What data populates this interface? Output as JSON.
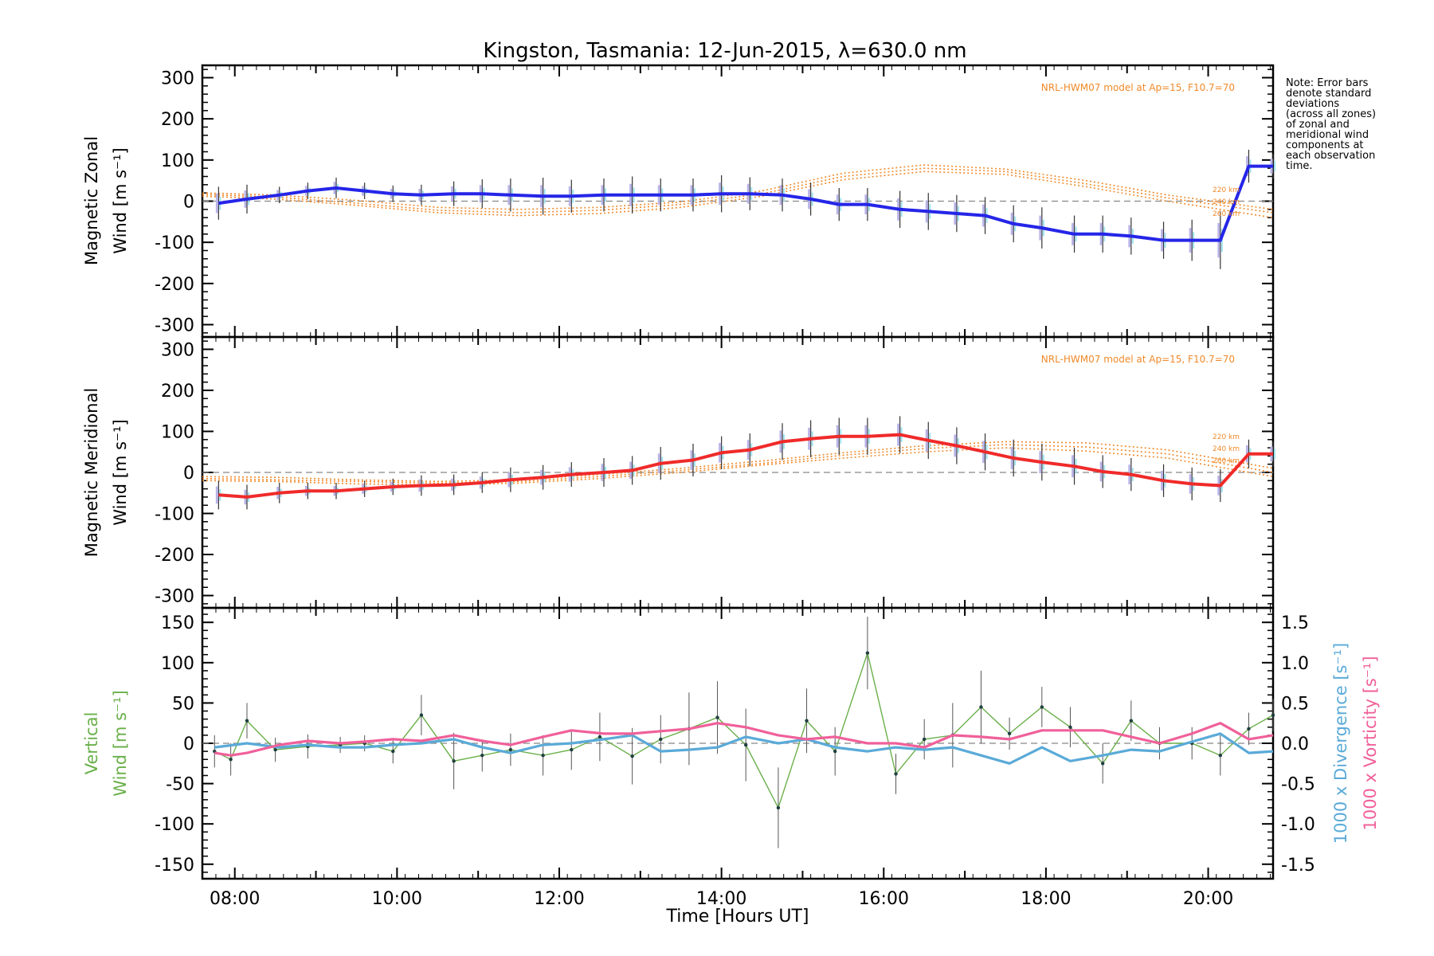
{
  "chart_data": [
    {
      "panel": "zonal",
      "type": "line",
      "title": "Kingston, Tasmania: 12-Jun-2015, λ=630.0 nm",
      "ylabel_lines": [
        "Magnetic Zonal",
        "Wind [m s⁻¹]"
      ],
      "ylim": [
        -330,
        330
      ],
      "yticks": [
        300,
        200,
        100,
        0,
        -100,
        -200,
        -300
      ],
      "xlim": [
        7.6,
        20.8
      ],
      "model_label": "NRL-HWM07 model at Ap=15, F10.7=70",
      "model_altitude_labels": [
        "220 km",
        "240 km",
        "260 km"
      ],
      "note_lines": [
        "Note: Error bars",
        "denote standard",
        "deviations",
        "(across all zones)",
        "of zonal and",
        "meridional wind",
        "components at",
        "each observation",
        "time."
      ],
      "color": "#2525e8",
      "series": [
        {
          "x": [
            7.8,
            8.15,
            8.55,
            8.9,
            9.25,
            9.6,
            9.95,
            10.3,
            10.7,
            11.05,
            11.4,
            11.8,
            12.15,
            12.55,
            12.9,
            13.25,
            13.65,
            14.0,
            14.35,
            14.75,
            15.1,
            15.45,
            15.8,
            16.2,
            16.55,
            16.9,
            17.25,
            17.6,
            17.95,
            18.35,
            18.7,
            19.05,
            19.45,
            19.8,
            20.15,
            20.5,
            20.8
          ],
          "y": [
            -5,
            5,
            15,
            25,
            32,
            25,
            18,
            15,
            18,
            18,
            15,
            12,
            12,
            15,
            15,
            15,
            15,
            18,
            18,
            15,
            5,
            -8,
            -8,
            -20,
            -25,
            -30,
            -35,
            -55,
            -65,
            -80,
            -80,
            -85,
            -95,
            -95,
            -95,
            85,
            85
          ]
        }
      ],
      "models": [
        {
          "name": "220 km",
          "x": [
            7.6,
            8.5,
            9.5,
            10.5,
            11.5,
            12.5,
            13.5,
            14.5,
            15.5,
            16.5,
            17.5,
            18.5,
            19.5,
            20.8
          ],
          "y": [
            20,
            15,
            2,
            -15,
            -20,
            -15,
            -2,
            25,
            68,
            88,
            78,
            50,
            15,
            -20
          ]
        },
        {
          "name": "240 km",
          "x": [
            7.6,
            8.5,
            9.5,
            10.5,
            11.5,
            12.5,
            13.5,
            14.5,
            15.5,
            16.5,
            17.5,
            18.5,
            19.5,
            20.8
          ],
          "y": [
            16,
            10,
            -5,
            -22,
            -28,
            -22,
            -8,
            18,
            60,
            80,
            72,
            42,
            8,
            -28
          ]
        },
        {
          "name": "260 km",
          "x": [
            7.6,
            8.5,
            9.5,
            10.5,
            11.5,
            12.5,
            13.5,
            14.5,
            15.5,
            16.5,
            17.5,
            18.5,
            19.5,
            20.8
          ],
          "y": [
            12,
            5,
            -10,
            -28,
            -35,
            -30,
            -15,
            12,
            52,
            72,
            65,
            35,
            0,
            -40
          ]
        }
      ],
      "error": [
        40,
        35,
        20,
        20,
        25,
        20,
        20,
        25,
        30,
        35,
        40,
        45,
        40,
        40,
        45,
        40,
        40,
        45,
        40,
        40,
        40,
        40,
        40,
        45,
        45,
        45,
        45,
        45,
        50,
        45,
        45,
        45,
        45,
        50,
        70,
        40,
        30
      ]
    },
    {
      "panel": "meridional",
      "type": "line",
      "ylabel_lines": [
        "Magnetic Meridional",
        "Wind [m s⁻¹]"
      ],
      "ylim": [
        -330,
        330
      ],
      "yticks": [
        300,
        200,
        100,
        0,
        -100,
        -200,
        -300
      ],
      "xlim": [
        7.6,
        20.8
      ],
      "model_label": "NRL-HWM07 model at Ap=15, F10.7=70",
      "model_altitude_labels": [
        "220 km",
        "240 km",
        "260 km"
      ],
      "color": "#f02a2a",
      "series": [
        {
          "x": [
            7.8,
            8.15,
            8.55,
            8.9,
            9.25,
            9.6,
            9.95,
            10.3,
            10.7,
            11.05,
            11.4,
            11.8,
            12.15,
            12.55,
            12.9,
            13.25,
            13.65,
            14.0,
            14.35,
            14.75,
            15.1,
            15.45,
            15.8,
            16.2,
            16.55,
            16.9,
            17.25,
            17.6,
            17.95,
            18.35,
            18.7,
            19.05,
            19.45,
            19.8,
            20.15,
            20.5,
            20.8
          ],
          "y": [
            -55,
            -60,
            -50,
            -45,
            -45,
            -40,
            -35,
            -32,
            -30,
            -25,
            -18,
            -12,
            -5,
            0,
            5,
            22,
            30,
            48,
            55,
            75,
            82,
            88,
            88,
            92,
            78,
            65,
            50,
            35,
            25,
            15,
            2,
            -5,
            -20,
            -28,
            -32,
            45,
            45
          ]
        }
      ],
      "models": [
        {
          "name": "220 km",
          "x": [
            7.6,
            8.5,
            9.5,
            10.5,
            11.5,
            12.5,
            13.5,
            14.5,
            15.5,
            16.5,
            17.5,
            18.5,
            19.5,
            20.8
          ],
          "y": [
            -10,
            -12,
            -18,
            -22,
            -18,
            -5,
            10,
            28,
            48,
            65,
            75,
            72,
            55,
            10
          ]
        },
        {
          "name": "240 km",
          "x": [
            7.6,
            8.5,
            9.5,
            10.5,
            11.5,
            12.5,
            13.5,
            14.5,
            15.5,
            16.5,
            17.5,
            18.5,
            19.5,
            20.8
          ],
          "y": [
            -15,
            -18,
            -22,
            -26,
            -22,
            -10,
            5,
            22,
            42,
            58,
            68,
            62,
            45,
            0
          ]
        },
        {
          "name": "260 km",
          "x": [
            7.6,
            8.5,
            9.5,
            10.5,
            11.5,
            12.5,
            13.5,
            14.5,
            15.5,
            16.5,
            17.5,
            18.5,
            19.5,
            20.8
          ],
          "y": [
            -20,
            -22,
            -28,
            -30,
            -26,
            -15,
            0,
            18,
            35,
            50,
            60,
            52,
            35,
            -10
          ]
        }
      ],
      "error": [
        35,
        30,
        25,
        20,
        20,
        20,
        20,
        25,
        25,
        25,
        30,
        30,
        30,
        35,
        35,
        40,
        40,
        40,
        40,
        45,
        45,
        45,
        45,
        45,
        45,
        45,
        45,
        45,
        45,
        45,
        40,
        40,
        40,
        40,
        40,
        35,
        30
      ]
    },
    {
      "panel": "vertical",
      "type": "line",
      "ylabel_lines": [
        "Vertical",
        "Wind [m s⁻¹]"
      ],
      "ylim": [
        -168,
        168
      ],
      "yticks": [
        150,
        100,
        50,
        0,
        -50,
        -100,
        -150
      ],
      "y2lim": [
        -1.68,
        1.68
      ],
      "y2ticks": [
        1.5,
        1.0,
        0.5,
        0.0,
        -0.5,
        -1.0,
        -1.5
      ],
      "y2label_divergence": "1000 x Divergence [s⁻¹]",
      "y2label_vorticity": "1000 x Vorticity [s⁻¹]",
      "xlim": [
        7.6,
        20.8
      ],
      "xticks": [
        8,
        10,
        12,
        14,
        16,
        18,
        20
      ],
      "xticklabels": [
        "08:00",
        "10:00",
        "12:00",
        "14:00",
        "16:00",
        "18:00",
        "20:00"
      ],
      "xlabel": "Time [Hours UT]",
      "colors": {
        "vertical": "#6ab04a",
        "divergence": "#5aaad8",
        "vorticity": "#f0609a"
      },
      "series": [
        {
          "key": "vertical",
          "x": [
            7.75,
            7.95,
            8.15,
            8.5,
            8.9,
            9.3,
            9.6,
            9.95,
            10.3,
            10.7,
            11.05,
            11.4,
            11.8,
            12.15,
            12.5,
            12.9,
            13.25,
            13.6,
            13.95,
            14.3,
            14.7,
            15.05,
            15.4,
            15.8,
            16.15,
            16.5,
            16.85,
            17.2,
            17.55,
            17.95,
            18.3,
            18.7,
            19.05,
            19.4,
            19.8,
            20.15,
            20.5,
            20.8
          ],
          "y": [
            -10,
            -20,
            28,
            -8,
            -4,
            -2,
            0,
            -10,
            35,
            -22,
            -15,
            -8,
            -15,
            -8,
            8,
            -16,
            5,
            18,
            32,
            -2,
            -80,
            28,
            -10,
            112,
            -38,
            5,
            10,
            45,
            12,
            45,
            20,
            -25,
            28,
            0,
            0,
            -15,
            18,
            35
          ],
          "error": [
            20,
            20,
            22,
            15,
            15,
            10,
            10,
            15,
            25,
            35,
            20,
            20,
            25,
            25,
            30,
            35,
            30,
            45,
            45,
            45,
            50,
            40,
            30,
            45,
            25,
            25,
            40,
            45,
            20,
            25,
            25,
            25,
            25,
            20,
            20,
            25,
            20,
            20
          ]
        },
        {
          "key": "divergence",
          "x": [
            7.75,
            8.15,
            8.55,
            8.9,
            9.3,
            9.6,
            9.95,
            10.3,
            10.7,
            11.05,
            11.4,
            11.8,
            12.15,
            12.55,
            12.9,
            13.25,
            13.6,
            13.95,
            14.3,
            14.7,
            15.05,
            15.4,
            15.8,
            16.15,
            16.5,
            16.85,
            17.2,
            17.55,
            17.95,
            18.3,
            18.7,
            19.05,
            19.4,
            19.8,
            20.15,
            20.5,
            20.8
          ],
          "y": [
            -0.05,
            0.0,
            -0.05,
            -0.02,
            -0.05,
            -0.05,
            -0.02,
            0.0,
            0.05,
            -0.05,
            -0.12,
            -0.02,
            0.0,
            0.05,
            0.1,
            -0.1,
            -0.08,
            -0.05,
            0.08,
            0.0,
            0.05,
            -0.05,
            -0.1,
            -0.05,
            -0.08,
            -0.05,
            -0.15,
            -0.25,
            -0.05,
            -0.22,
            -0.15,
            -0.08,
            -0.1,
            0.02,
            0.12,
            -0.12,
            -0.1
          ]
        },
        {
          "key": "vorticity",
          "x": [
            7.75,
            7.95,
            8.15,
            8.55,
            8.9,
            9.3,
            9.6,
            9.95,
            10.3,
            10.7,
            11.05,
            11.4,
            11.8,
            12.15,
            12.55,
            12.9,
            13.25,
            13.6,
            13.95,
            14.3,
            14.7,
            15.05,
            15.4,
            15.8,
            16.15,
            16.5,
            16.85,
            17.2,
            17.55,
            17.95,
            18.3,
            18.7,
            19.05,
            19.4,
            19.8,
            20.15,
            20.5,
            20.8
          ],
          "y": [
            -0.12,
            -0.15,
            -0.12,
            -0.02,
            0.03,
            0.0,
            0.02,
            0.05,
            0.03,
            0.1,
            0.03,
            -0.02,
            0.08,
            0.16,
            0.12,
            0.12,
            0.15,
            0.18,
            0.25,
            0.2,
            0.1,
            0.05,
            0.08,
            0.0,
            0.0,
            -0.05,
            0.1,
            0.08,
            0.05,
            0.16,
            0.16,
            0.16,
            0.08,
            0.0,
            0.12,
            0.25,
            0.05,
            0.1
          ]
        }
      ]
    }
  ]
}
